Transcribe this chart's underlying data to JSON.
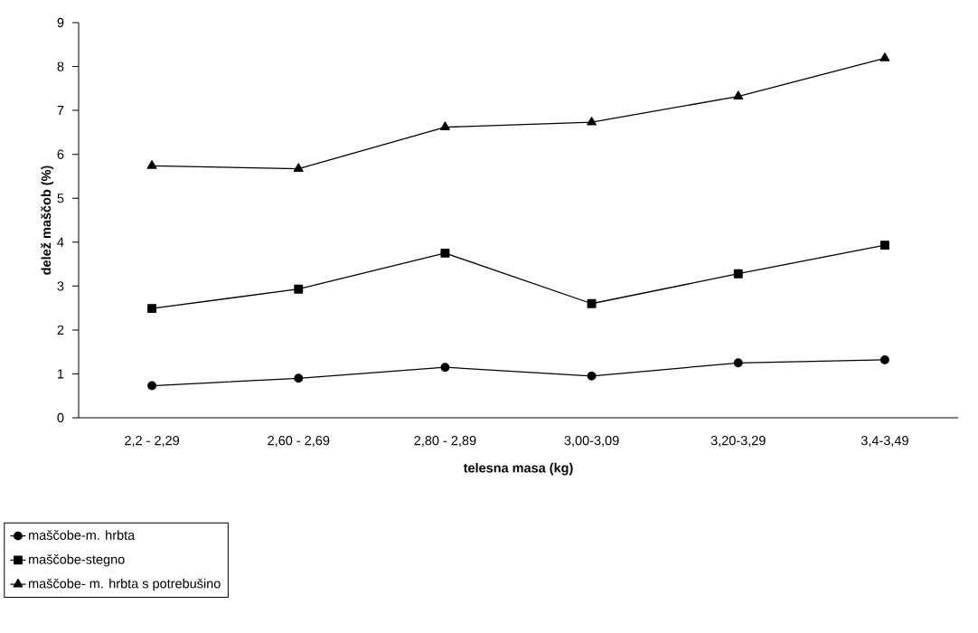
{
  "chart_data": {
    "type": "line",
    "xlabel": "telesna masa (kg)",
    "ylabel": "delež maščob (%)",
    "categories": [
      "2,2 - 2,29",
      "2,60 - 2,69",
      "2,80 - 2,89",
      "3,00-3,09",
      "3,20-3,29",
      "3,4-3,49"
    ],
    "series": [
      {
        "name": "maščobe-m. hrbta",
        "color": "#000000",
        "marker": "circle",
        "values": [
          0.73,
          0.9,
          1.15,
          0.95,
          1.25,
          1.32
        ]
      },
      {
        "name": "maščobe-stegno",
        "color": "#000000",
        "marker": "square",
        "values": [
          2.49,
          2.93,
          3.75,
          2.6,
          3.28,
          3.93
        ]
      },
      {
        "name": "maščobe- m. hrbta s potrebušino",
        "color": "#000000",
        "marker": "triangle",
        "values": [
          5.74,
          5.67,
          6.62,
          6.73,
          7.32,
          8.19
        ]
      }
    ],
    "ylim": [
      0,
      9
    ],
    "yticks": [
      0,
      1,
      2,
      3,
      4,
      5,
      6,
      7,
      8,
      9
    ],
    "grid": false,
    "legend": "bottom left",
    "line_style": "solid"
  }
}
